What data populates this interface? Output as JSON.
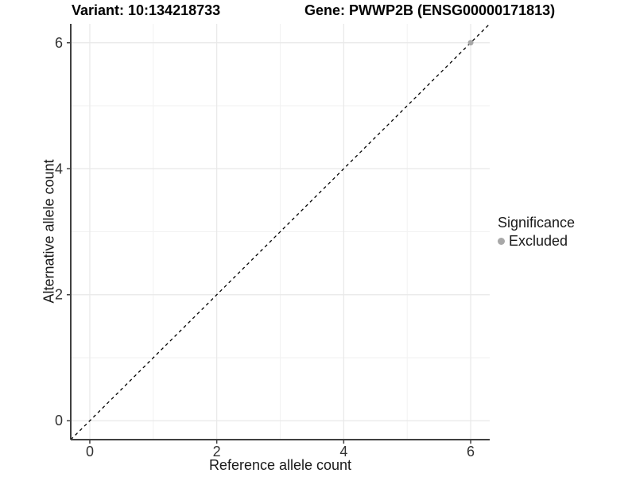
{
  "chart_data": {
    "type": "scatter",
    "title_left": "Variant: 10:134218733",
    "title_right": "Gene: PWWP2B (ENSG00000171813)",
    "xlabel": "Reference allele count",
    "ylabel": "Alternative allele count",
    "xlim": [
      -0.3,
      6.3
    ],
    "ylim": [
      -0.3,
      6.3
    ],
    "x_ticks": [
      0,
      2,
      4,
      6
    ],
    "y_ticks": [
      0,
      2,
      4,
      6
    ],
    "x_minor_ticks": [
      1,
      3,
      5
    ],
    "y_minor_ticks": [
      1,
      3,
      5
    ],
    "grid": "on",
    "points": [
      {
        "x": 6,
        "y": 6,
        "series": "Excluded"
      }
    ],
    "reference_line": {
      "type": "identity",
      "slope": 1,
      "intercept": 0,
      "style": "dashed",
      "color": "#000000"
    },
    "legend": {
      "title": "Significance",
      "position": "right",
      "items": [
        {
          "label": "Excluded",
          "color": "#a8a8a8"
        }
      ]
    },
    "colors": {
      "point": "#a8a8a8",
      "grid_major": "#e8e8e8",
      "grid_minor": "#f2f2f2",
      "axis_line": "#404040",
      "tick_text": "#333333",
      "background": "#ffffff"
    }
  }
}
